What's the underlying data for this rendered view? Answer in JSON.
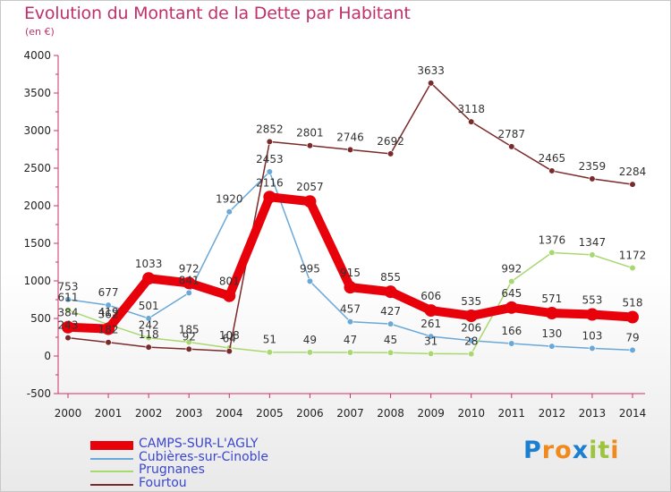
{
  "title": "Evolution du Montant de la Dette par Habitant",
  "unit": "(en €)",
  "logo": {
    "letters": [
      "P",
      "r",
      "o",
      "x",
      "i",
      "t",
      "i"
    ],
    "colors": [
      "#1a7fd0",
      "#f08a1c",
      "#f08a1c",
      "#1a7fd0",
      "#9cc43c",
      "#9cc43c",
      "#f08a1c"
    ]
  },
  "chart_data": {
    "type": "line",
    "x": [
      "2000",
      "2001",
      "2002",
      "2003",
      "2004",
      "2005",
      "2006",
      "2007",
      "2008",
      "2009",
      "2010",
      "2011",
      "2012",
      "2013",
      "2014"
    ],
    "ylim": [
      -500,
      4000
    ],
    "yticks": [
      "-500",
      "0",
      "500",
      "1000",
      "1500",
      "2000",
      "2500",
      "3000",
      "3500",
      "4000"
    ],
    "grid": false,
    "legend_position": "bottom-left",
    "series": [
      {
        "name": "CAMPS-SUR-L'AGLY",
        "color": "#e8000b",
        "emphasis": true,
        "values": [
          384,
          362,
          1033,
          972,
          801,
          2116,
          2057,
          915,
          855,
          606,
          535,
          645,
          571,
          553,
          518
        ],
        "labels": [
          "384",
          "362",
          "1033",
          "972",
          "801",
          "2116",
          "2057",
          "915",
          "855",
          "606",
          "535",
          "645",
          "571",
          "553",
          "518"
        ]
      },
      {
        "name": "Cubières-sur-Cinoble",
        "color": "#6aa8d8",
        "emphasis": false,
        "values": [
          753,
          677,
          501,
          841,
          1920,
          2453,
          995,
          457,
          427,
          261,
          206,
          166,
          130,
          103,
          79
        ],
        "labels": [
          "753",
          "677",
          "501",
          "841",
          "1920",
          "2453",
          "995",
          "457",
          "427",
          "261",
          "206",
          "166",
          "130",
          "103",
          "79"
        ]
      },
      {
        "name": "Prugnanes",
        "color": "#a8d870",
        "emphasis": false,
        "values": [
          611,
          419,
          242,
          185,
          108,
          51,
          49,
          47,
          45,
          31,
          28,
          992,
          1376,
          1347,
          1172
        ],
        "labels": [
          "611",
          "419",
          "242",
          "185",
          "108",
          "51",
          "49",
          "47",
          "45",
          "31",
          "28",
          "992",
          "1376",
          "1347",
          "1172"
        ]
      },
      {
        "name": "Fourtou",
        "color": "#7a2a2a",
        "emphasis": false,
        "values": [
          243,
          182,
          118,
          92,
          64,
          2852,
          2801,
          2746,
          2692,
          3633,
          3118,
          2787,
          2465,
          2359,
          2284
        ],
        "labels": [
          "243",
          "182",
          "118",
          "92",
          "64",
          "2852",
          "2801",
          "2746",
          "2692",
          "3633",
          "3118",
          "2787",
          "2465",
          "2359",
          "2284"
        ]
      }
    ]
  }
}
